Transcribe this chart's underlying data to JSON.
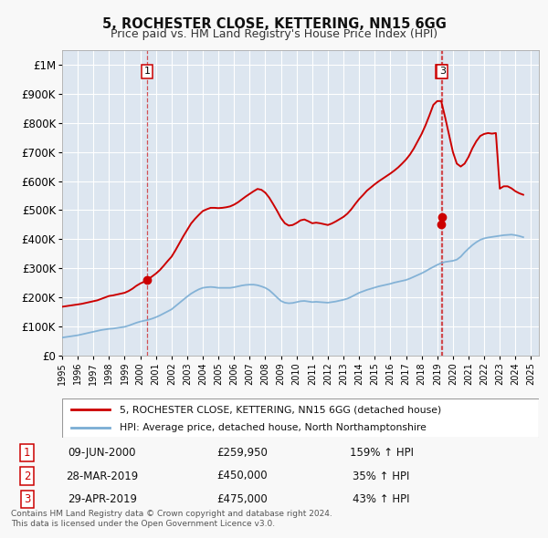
{
  "title": "5, ROCHESTER CLOSE, KETTERING, NN15 6GG",
  "subtitle": "Price paid vs. HM Land Registry's House Price Index (HPI)",
  "bg_color": "#f8f8f8",
  "plot_bg_color": "#dde6f0",
  "grid_color": "#ffffff",
  "red_line_color": "#cc0000",
  "blue_line_color": "#7aadd4",
  "ylim": [
    0,
    1050000
  ],
  "xlim_start": 1995.0,
  "xlim_end": 2025.5,
  "yticks": [
    0,
    100000,
    200000,
    300000,
    400000,
    500000,
    600000,
    700000,
    800000,
    900000,
    1000000
  ],
  "ytick_labels": [
    "£0",
    "£100K",
    "£200K",
    "£300K",
    "£400K",
    "£500K",
    "£600K",
    "£700K",
    "£800K",
    "£900K",
    "£1M"
  ],
  "sale1_x": 2000.44,
  "sale1_y": 259950,
  "sale1_label": "1",
  "sale2_x": 2019.22,
  "sale2_y": 450000,
  "sale2_label": "2",
  "sale3_x": 2019.33,
  "sale3_y": 475000,
  "sale3_label": "3",
  "legend_red_label": "5, ROCHESTER CLOSE, KETTERING, NN15 6GG (detached house)",
  "legend_blue_label": "HPI: Average price, detached house, North Northamptonshire",
  "table_rows": [
    [
      "1",
      "09-JUN-2000",
      "£259,950",
      "159% ↑ HPI"
    ],
    [
      "2",
      "28-MAR-2019",
      "£450,000",
      "35% ↑ HPI"
    ],
    [
      "3",
      "29-APR-2019",
      "£475,000",
      "43% ↑ HPI"
    ]
  ],
  "footer": "Contains HM Land Registry data © Crown copyright and database right 2024.\nThis data is licensed under the Open Government Licence v3.0.",
  "hpi_x": [
    1995.0,
    1995.25,
    1995.5,
    1995.75,
    1996.0,
    1996.25,
    1996.5,
    1996.75,
    1997.0,
    1997.25,
    1997.5,
    1997.75,
    1998.0,
    1998.25,
    1998.5,
    1998.75,
    1999.0,
    1999.25,
    1999.5,
    1999.75,
    2000.0,
    2000.25,
    2000.5,
    2000.75,
    2001.0,
    2001.25,
    2001.5,
    2001.75,
    2002.0,
    2002.25,
    2002.5,
    2002.75,
    2003.0,
    2003.25,
    2003.5,
    2003.75,
    2004.0,
    2004.25,
    2004.5,
    2004.75,
    2005.0,
    2005.25,
    2005.5,
    2005.75,
    2006.0,
    2006.25,
    2006.5,
    2006.75,
    2007.0,
    2007.25,
    2007.5,
    2007.75,
    2008.0,
    2008.25,
    2008.5,
    2008.75,
    2009.0,
    2009.25,
    2009.5,
    2009.75,
    2010.0,
    2010.25,
    2010.5,
    2010.75,
    2011.0,
    2011.25,
    2011.5,
    2011.75,
    2012.0,
    2012.25,
    2012.5,
    2012.75,
    2013.0,
    2013.25,
    2013.5,
    2013.75,
    2014.0,
    2014.25,
    2014.5,
    2014.75,
    2015.0,
    2015.25,
    2015.5,
    2015.75,
    2016.0,
    2016.25,
    2016.5,
    2016.75,
    2017.0,
    2017.25,
    2017.5,
    2017.75,
    2018.0,
    2018.25,
    2018.5,
    2018.75,
    2019.0,
    2019.25,
    2019.5,
    2019.75,
    2020.0,
    2020.25,
    2020.5,
    2020.75,
    2021.0,
    2021.25,
    2021.5,
    2021.75,
    2022.0,
    2022.25,
    2022.5,
    2022.75,
    2023.0,
    2023.25,
    2023.5,
    2023.75,
    2024.0,
    2024.25,
    2024.5
  ],
  "hpi_y": [
    62000,
    64000,
    66000,
    68000,
    70000,
    73000,
    76000,
    79000,
    82000,
    85000,
    88000,
    90000,
    92000,
    93000,
    95000,
    97000,
    99000,
    103000,
    108000,
    113000,
    117000,
    120000,
    123000,
    127000,
    132000,
    138000,
    145000,
    152000,
    159000,
    170000,
    181000,
    192000,
    203000,
    213000,
    221000,
    228000,
    233000,
    235000,
    236000,
    235000,
    233000,
    233000,
    233000,
    233000,
    235000,
    238000,
    241000,
    243000,
    244000,
    244000,
    242000,
    238000,
    233000,
    225000,
    213000,
    200000,
    188000,
    182000,
    180000,
    181000,
    184000,
    187000,
    188000,
    186000,
    184000,
    185000,
    184000,
    183000,
    182000,
    184000,
    186000,
    189000,
    192000,
    196000,
    202000,
    209000,
    216000,
    221000,
    226000,
    230000,
    234000,
    238000,
    241000,
    244000,
    247000,
    251000,
    254000,
    257000,
    260000,
    265000,
    271000,
    277000,
    283000,
    290000,
    298000,
    305000,
    312000,
    318000,
    322000,
    324000,
    326000,
    330000,
    340000,
    355000,
    368000,
    380000,
    390000,
    398000,
    403000,
    406000,
    408000,
    410000,
    412000,
    414000,
    415000,
    416000,
    414000,
    411000,
    407000
  ],
  "red_x": [
    1995.0,
    1995.25,
    1995.5,
    1995.75,
    1996.0,
    1996.25,
    1996.5,
    1996.75,
    1997.0,
    1997.25,
    1997.5,
    1997.75,
    1998.0,
    1998.25,
    1998.5,
    1998.75,
    1999.0,
    1999.25,
    1999.5,
    1999.75,
    2000.0,
    2000.25,
    2000.5,
    2000.75,
    2001.0,
    2001.25,
    2001.5,
    2001.75,
    2002.0,
    2002.25,
    2002.5,
    2002.75,
    2003.0,
    2003.25,
    2003.5,
    2003.75,
    2004.0,
    2004.25,
    2004.5,
    2004.75,
    2005.0,
    2005.25,
    2005.5,
    2005.75,
    2006.0,
    2006.25,
    2006.5,
    2006.75,
    2007.0,
    2007.25,
    2007.5,
    2007.75,
    2008.0,
    2008.25,
    2008.5,
    2008.75,
    2009.0,
    2009.25,
    2009.5,
    2009.75,
    2010.0,
    2010.25,
    2010.5,
    2010.75,
    2011.0,
    2011.25,
    2011.5,
    2011.75,
    2012.0,
    2012.25,
    2012.5,
    2012.75,
    2013.0,
    2013.25,
    2013.5,
    2013.75,
    2014.0,
    2014.25,
    2014.5,
    2014.75,
    2015.0,
    2015.25,
    2015.5,
    2015.75,
    2016.0,
    2016.25,
    2016.5,
    2016.75,
    2017.0,
    2017.25,
    2017.5,
    2017.75,
    2018.0,
    2018.25,
    2018.5,
    2018.75,
    2019.0,
    2019.25,
    2019.5,
    2019.75,
    2020.0,
    2020.25,
    2020.5,
    2020.75,
    2021.0,
    2021.25,
    2021.5,
    2021.75,
    2022.0,
    2022.25,
    2022.5,
    2022.75,
    2023.0,
    2023.25,
    2023.5,
    2023.75,
    2024.0,
    2024.25,
    2024.5
  ],
  "red_y": [
    168000,
    170000,
    172000,
    174000,
    176000,
    178000,
    181000,
    184000,
    187000,
    190000,
    195000,
    200000,
    205000,
    207000,
    210000,
    213000,
    216000,
    222000,
    230000,
    240000,
    248000,
    254000,
    262000,
    272000,
    282000,
    294000,
    309000,
    325000,
    340000,
    362000,
    386000,
    410000,
    432000,
    454000,
    470000,
    484000,
    497000,
    503000,
    508000,
    508000,
    507000,
    508000,
    510000,
    513000,
    519000,
    527000,
    537000,
    547000,
    556000,
    565000,
    573000,
    570000,
    560000,
    543000,
    521000,
    498000,
    473000,
    455000,
    447000,
    449000,
    456000,
    465000,
    468000,
    462000,
    455000,
    457000,
    455000,
    452000,
    449000,
    454000,
    461000,
    469000,
    477000,
    488000,
    503000,
    521000,
    538000,
    552000,
    567000,
    578000,
    589000,
    599000,
    608000,
    617000,
    626000,
    636000,
    647000,
    660000,
    674000,
    691000,
    712000,
    737000,
    762000,
    792000,
    826000,
    862000,
    875000,
    875000,
    820000,
    760000,
    700000,
    660000,
    650000,
    660000,
    683000,
    713000,
    737000,
    755000,
    762000,
    765000,
    763000,
    765000,
    574000,
    582000,
    582000,
    575000,
    565000,
    558000,
    553000
  ]
}
